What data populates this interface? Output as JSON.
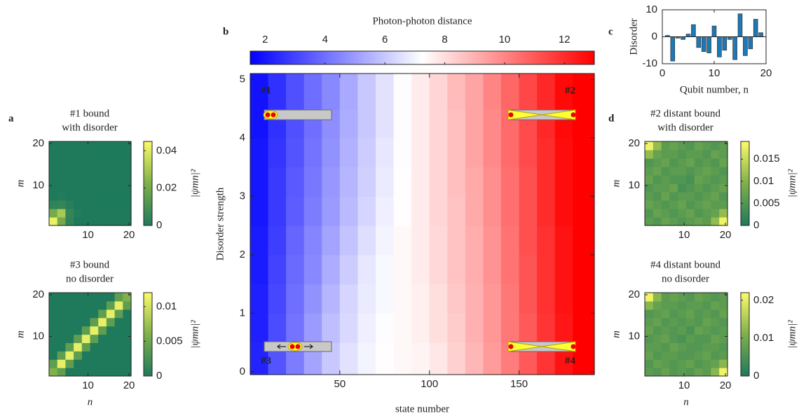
{
  "chart_data": [
    {
      "type": "heatmap",
      "panel_label": "a",
      "title": [
        "#1 bound",
        "with disorder"
      ],
      "ylabel": "m",
      "colorbar_label": "|ψmn|²",
      "x": [
        1.5,
        3.5,
        5.5,
        7.5,
        9.5,
        11.5,
        13.5,
        15.5,
        17.5,
        19.5
      ],
      "y": [
        1.5,
        3.5,
        5.5,
        7.5,
        9.5,
        11.5,
        13.5,
        15.5,
        17.5,
        19.5
      ],
      "xlim": [
        0.5,
        20.5
      ],
      "ylim": [
        0.5,
        20.5
      ],
      "xticks": [
        10,
        20
      ],
      "yticks": [
        10,
        20
      ],
      "clim": [
        0,
        0.045
      ],
      "cticks": [
        0,
        0.02,
        0.04
      ],
      "colormap": [
        "#1f7a5c",
        "#7fb04a",
        "#fbfb6a"
      ],
      "z": [
        [
          0.042,
          0.02,
          0.004,
          0,
          0,
          0,
          0,
          0,
          0,
          0
        ],
        [
          0.02,
          0.03,
          0.005,
          0.001,
          0,
          0,
          0,
          0,
          0,
          0
        ],
        [
          0.004,
          0.005,
          0.002,
          0,
          0,
          0,
          0,
          0,
          0,
          0
        ],
        [
          0,
          0.001,
          0,
          0,
          0,
          0,
          0,
          0,
          0,
          0
        ],
        [
          0,
          0,
          0,
          0,
          0,
          0,
          0,
          0,
          0,
          0
        ],
        [
          0,
          0,
          0,
          0,
          0,
          0,
          0,
          0,
          0,
          0
        ],
        [
          0,
          0,
          0,
          0,
          0,
          0,
          0,
          0,
          0,
          0
        ],
        [
          0,
          0,
          0,
          0,
          0,
          0,
          0,
          0,
          0,
          0
        ],
        [
          0,
          0,
          0,
          0,
          0,
          0,
          0,
          0,
          0,
          0
        ],
        [
          0,
          0,
          0,
          0,
          0,
          0,
          0,
          0,
          0,
          0
        ]
      ]
    },
    {
      "type": "heatmap",
      "title": [
        "#3 bound",
        "no disorder"
      ],
      "xlabel": "n",
      "ylabel": "m",
      "colorbar_label": "|ψmn|²",
      "x": [
        1.5,
        3.5,
        5.5,
        7.5,
        9.5,
        11.5,
        13.5,
        15.5,
        17.5,
        19.5
      ],
      "y": [
        1.5,
        3.5,
        5.5,
        7.5,
        9.5,
        11.5,
        13.5,
        15.5,
        17.5,
        19.5
      ],
      "xlim": [
        0.5,
        20.5
      ],
      "ylim": [
        0.5,
        20.5
      ],
      "xticks": [
        10,
        20
      ],
      "yticks": [
        10,
        20
      ],
      "clim": [
        0,
        0.012
      ],
      "cticks": [
        0,
        0.005,
        0.01
      ],
      "colormap": [
        "#1f7a5c",
        "#7fb04a",
        "#fbfb6a"
      ],
      "z": [
        [
          0.006,
          0.004,
          0,
          0,
          0,
          0,
          0,
          0,
          0,
          0
        ],
        [
          0.004,
          0.011,
          0.004,
          0,
          0,
          0,
          0,
          0,
          0,
          0
        ],
        [
          0,
          0.004,
          0.011,
          0.004,
          0,
          0,
          0,
          0,
          0,
          0
        ],
        [
          0,
          0,
          0.004,
          0.011,
          0.004,
          0,
          0,
          0,
          0,
          0
        ],
        [
          0,
          0,
          0,
          0.004,
          0.011,
          0.004,
          0,
          0,
          0,
          0
        ],
        [
          0,
          0,
          0,
          0,
          0.004,
          0.011,
          0.004,
          0,
          0,
          0
        ],
        [
          0,
          0,
          0,
          0,
          0,
          0.004,
          0.011,
          0.004,
          0,
          0
        ],
        [
          0,
          0,
          0,
          0,
          0,
          0,
          0.004,
          0.011,
          0.004,
          0
        ],
        [
          0,
          0,
          0,
          0,
          0,
          0,
          0,
          0.004,
          0.011,
          0.004
        ],
        [
          0,
          0,
          0,
          0,
          0,
          0,
          0,
          0,
          0.004,
          0.006
        ]
      ]
    },
    {
      "type": "heatmap",
      "panel_label": "b",
      "colorbar_label": "Photon-photon distance",
      "xlabel": "state number",
      "ylabel": "Disorder strength",
      "annotations": [
        "#1",
        "#2",
        "#3",
        "#4"
      ],
      "x": [
        5,
        15,
        25,
        35,
        45,
        55,
        65,
        75,
        85,
        95,
        105,
        115,
        125,
        135,
        145,
        155,
        165,
        175,
        185
      ],
      "y": [
        0.25,
        0.75,
        1.25,
        1.75,
        2.25,
        2.75,
        3.25,
        3.75,
        4.25,
        4.75
      ],
      "xlim": [
        0,
        192
      ],
      "ylim": [
        -0.05,
        5.1
      ],
      "xticks": [
        50,
        100,
        150
      ],
      "yticks": [
        0,
        1,
        2,
        3,
        4,
        5
      ],
      "clim": [
        1.5,
        13
      ],
      "cticks": [
        2,
        4,
        6,
        8,
        10,
        12
      ],
      "colormap": [
        "#0000ff",
        "#ffffff",
        "#ff0000"
      ],
      "z": [
        [
          2.3,
          3.4,
          4.3,
          5.2,
          6.0,
          6.6,
          7.0,
          7.3,
          7.4,
          7.5,
          7.8,
          8.3,
          8.9,
          9.5,
          10.2,
          11.0,
          11.8,
          12.6,
          13.0
        ],
        [
          2.2,
          3.2,
          4.1,
          5.0,
          5.8,
          6.4,
          6.9,
          7.2,
          7.4,
          7.6,
          8.0,
          8.4,
          9.0,
          9.6,
          10.3,
          11.0,
          11.8,
          12.5,
          13.0
        ],
        [
          2.2,
          3.1,
          4.0,
          4.8,
          5.6,
          6.3,
          6.8,
          7.1,
          7.4,
          7.6,
          8.0,
          8.5,
          9.0,
          9.6,
          10.3,
          11.1,
          11.9,
          12.6,
          13.0
        ],
        [
          2.1,
          3.0,
          3.9,
          4.6,
          5.4,
          6.1,
          6.7,
          7.1,
          7.4,
          7.7,
          8.1,
          8.6,
          9.1,
          9.7,
          10.4,
          11.1,
          11.9,
          12.6,
          13.0
        ],
        [
          2.1,
          2.9,
          3.8,
          4.5,
          5.2,
          5.9,
          6.5,
          7.0,
          7.4,
          7.7,
          8.1,
          8.6,
          9.1,
          9.7,
          10.4,
          11.2,
          11.9,
          12.6,
          13.0
        ],
        [
          2.0,
          2.8,
          3.6,
          4.3,
          5.0,
          5.7,
          6.3,
          6.9,
          7.3,
          7.7,
          8.2,
          8.6,
          9.2,
          9.8,
          10.5,
          11.2,
          12.0,
          12.7,
          13.0
        ],
        [
          2.0,
          2.8,
          3.5,
          4.2,
          4.9,
          5.6,
          6.2,
          6.8,
          7.3,
          7.7,
          8.2,
          8.7,
          9.2,
          9.8,
          10.5,
          11.2,
          12.0,
          12.7,
          13.0
        ],
        [
          2.0,
          2.7,
          3.4,
          4.1,
          4.8,
          5.5,
          6.1,
          6.7,
          7.2,
          7.7,
          8.2,
          8.7,
          9.3,
          9.9,
          10.6,
          11.3,
          12.0,
          12.7,
          13.0
        ],
        [
          1.9,
          2.6,
          3.3,
          4.0,
          4.7,
          5.4,
          6.0,
          6.6,
          7.2,
          7.7,
          8.2,
          8.7,
          9.3,
          9.9,
          10.6,
          11.3,
          12.1,
          12.8,
          13.0
        ],
        [
          1.9,
          2.6,
          3.3,
          4.0,
          4.6,
          5.3,
          6.0,
          6.6,
          7.2,
          7.7,
          8.2,
          8.8,
          9.3,
          10.0,
          10.7,
          11.4,
          12.1,
          12.8,
          13.0
        ]
      ]
    },
    {
      "type": "bar",
      "panel_label": "c",
      "xlabel": "Qubit number, n",
      "ylabel": "Disorder",
      "color": "#1f77b4",
      "x": [
        1,
        2,
        3,
        4,
        5,
        6,
        7,
        8,
        9,
        10,
        11,
        12,
        13,
        14,
        15,
        16,
        17,
        18,
        19,
        20
      ],
      "values": [
        0.5,
        -9,
        -0.5,
        -1,
        1,
        4.5,
        -4,
        -5.5,
        -6,
        4,
        -7.5,
        -5,
        -1,
        -8.5,
        8.5,
        -7,
        -4.5,
        6.5,
        1.5,
        0
      ],
      "xlim": [
        0,
        20
      ],
      "ylim": [
        -10,
        10
      ],
      "xticks": [
        0,
        10,
        20
      ],
      "yticks": [
        -10,
        0,
        10
      ]
    },
    {
      "type": "heatmap",
      "panel_label": "d",
      "title": [
        "#2 distant bound",
        "with disorder"
      ],
      "ylabel": "m",
      "colorbar_label": "|ψmn|²",
      "x": [
        1.5,
        3.5,
        5.5,
        7.5,
        9.5,
        11.5,
        13.5,
        15.5,
        17.5,
        19.5
      ],
      "y": [
        1.5,
        3.5,
        5.5,
        7.5,
        9.5,
        11.5,
        13.5,
        15.5,
        17.5,
        19.5
      ],
      "xlim": [
        0.5,
        20.5
      ],
      "ylim": [
        0.5,
        20.5
      ],
      "xticks": [
        10,
        20
      ],
      "yticks": [
        10,
        20
      ],
      "clim": [
        0,
        0.019
      ],
      "cticks": [
        0,
        0.005,
        0.01,
        0.015
      ],
      "colormap": [
        "#1f7a5c",
        "#7fb04a",
        "#fbfb6a"
      ],
      "z": [
        [
          0.006,
          0.005,
          0.007,
          0.006,
          0.005,
          0.006,
          0.007,
          0.006,
          0.011,
          0.018
        ],
        [
          0.005,
          0.007,
          0.006,
          0.005,
          0.006,
          0.007,
          0.005,
          0.006,
          0.007,
          0.011
        ],
        [
          0.007,
          0.006,
          0.005,
          0.006,
          0.007,
          0.005,
          0.006,
          0.007,
          0.006,
          0.006
        ],
        [
          0.006,
          0.005,
          0.007,
          0.005,
          0.006,
          0.006,
          0.005,
          0.006,
          0.007,
          0.005
        ],
        [
          0.005,
          0.006,
          0.006,
          0.007,
          0.004,
          0.005,
          0.006,
          0.005,
          0.006,
          0.007
        ],
        [
          0.007,
          0.005,
          0.006,
          0.005,
          0.005,
          0.004,
          0.007,
          0.006,
          0.005,
          0.006
        ],
        [
          0.006,
          0.007,
          0.005,
          0.006,
          0.006,
          0.005,
          0.006,
          0.007,
          0.006,
          0.005
        ],
        [
          0.005,
          0.006,
          0.007,
          0.005,
          0.006,
          0.007,
          0.005,
          0.006,
          0.005,
          0.007
        ],
        [
          0.011,
          0.007,
          0.006,
          0.006,
          0.005,
          0.006,
          0.006,
          0.005,
          0.007,
          0.006
        ],
        [
          0.018,
          0.011,
          0.006,
          0.007,
          0.006,
          0.005,
          0.007,
          0.006,
          0.005,
          0.006
        ]
      ]
    },
    {
      "type": "heatmap",
      "title": [
        "#4 distant bound",
        "no disorder"
      ],
      "xlabel": "n",
      "ylabel": "m",
      "colorbar_label": "|ψmn|²",
      "x": [
        1.5,
        3.5,
        5.5,
        7.5,
        9.5,
        11.5,
        13.5,
        15.5,
        17.5,
        19.5
      ],
      "y": [
        1.5,
        3.5,
        5.5,
        7.5,
        9.5,
        11.5,
        13.5,
        15.5,
        17.5,
        19.5
      ],
      "xlim": [
        0.5,
        20.5
      ],
      "ylim": [
        0.5,
        20.5
      ],
      "xticks": [
        10,
        20
      ],
      "yticks": [
        10,
        20
      ],
      "clim": [
        0,
        0.022
      ],
      "cticks": [
        0,
        0.01,
        0.02
      ],
      "colormap": [
        "#1f7a5c",
        "#7fb04a",
        "#fbfb6a"
      ],
      "z": [
        [
          0.007,
          0.006,
          0.008,
          0.006,
          0.007,
          0.006,
          0.008,
          0.007,
          0.012,
          0.021
        ],
        [
          0.006,
          0.008,
          0.007,
          0.006,
          0.007,
          0.008,
          0.006,
          0.007,
          0.008,
          0.012
        ],
        [
          0.008,
          0.006,
          0.007,
          0.007,
          0.006,
          0.006,
          0.007,
          0.008,
          0.006,
          0.007
        ],
        [
          0.007,
          0.007,
          0.006,
          0.008,
          0.007,
          0.006,
          0.006,
          0.007,
          0.007,
          0.006
        ],
        [
          0.006,
          0.007,
          0.008,
          0.006,
          0.005,
          0.007,
          0.006,
          0.006,
          0.008,
          0.007
        ],
        [
          0.008,
          0.006,
          0.007,
          0.006,
          0.007,
          0.005,
          0.008,
          0.007,
          0.006,
          0.007
        ],
        [
          0.007,
          0.008,
          0.006,
          0.007,
          0.006,
          0.007,
          0.006,
          0.008,
          0.007,
          0.006
        ],
        [
          0.006,
          0.007,
          0.008,
          0.006,
          0.007,
          0.008,
          0.006,
          0.007,
          0.006,
          0.008
        ],
        [
          0.012,
          0.008,
          0.007,
          0.007,
          0.006,
          0.007,
          0.007,
          0.006,
          0.008,
          0.007
        ],
        [
          0.021,
          0.012,
          0.007,
          0.008,
          0.007,
          0.006,
          0.008,
          0.007,
          0.006,
          0.007
        ]
      ]
    }
  ]
}
